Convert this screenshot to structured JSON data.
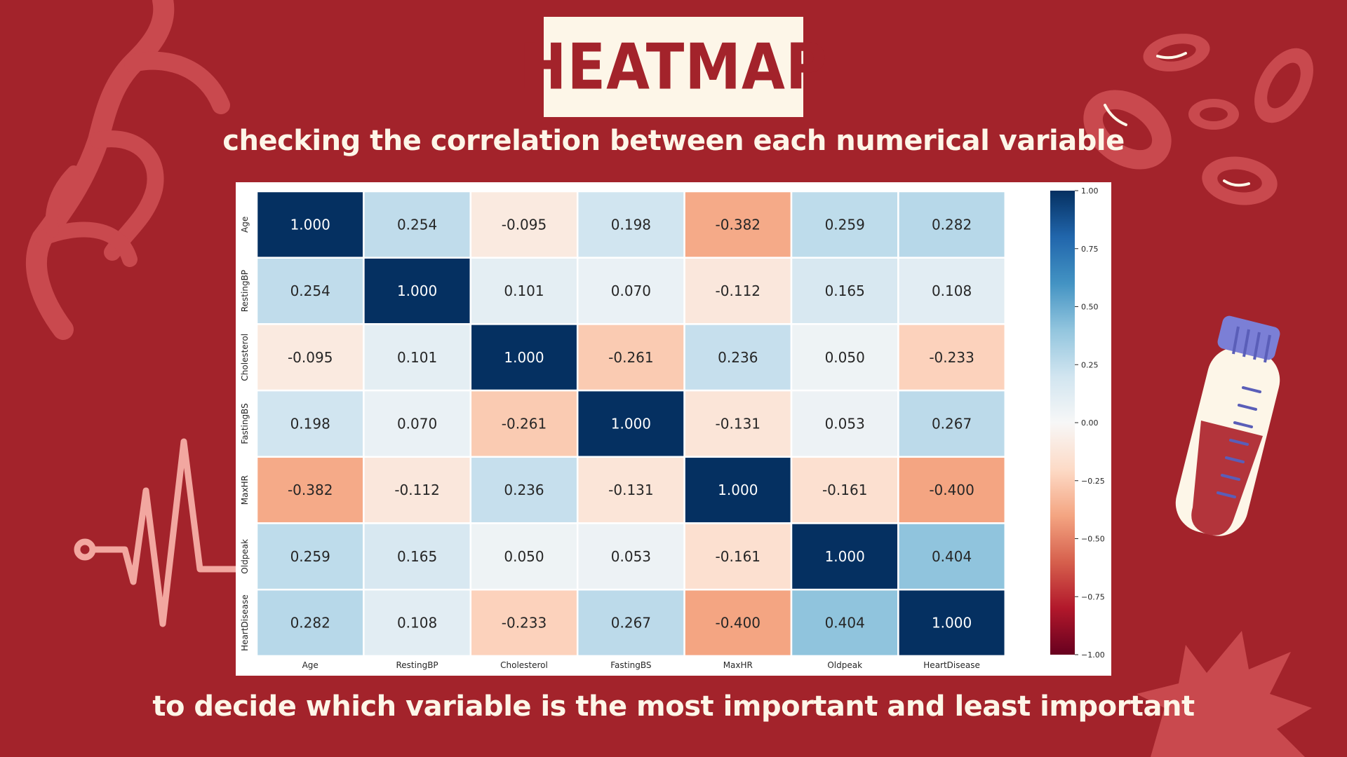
{
  "title": "HEATMAP",
  "subtitle": "checking the correlation between each numerical variable",
  "footer": "to decide which variable is the most important and least important",
  "icons": [
    "vein-icon",
    "blood-cells-icon",
    "heartbeat-line-icon",
    "test-tube-icon",
    "leaf-icon"
  ],
  "colors": {
    "background": "#a3232b",
    "title_box": "#fdf6e8",
    "decor": "#c9494e",
    "pulse": "#f2a7a0"
  },
  "chart_data": {
    "type": "heatmap",
    "x_labels": [
      "Age",
      "RestingBP",
      "Cholesterol",
      "FastingBS",
      "MaxHR",
      "Oldpeak",
      "HeartDisease"
    ],
    "y_labels": [
      "Age",
      "RestingBP",
      "Cholesterol",
      "FastingBS",
      "MaxHR",
      "Oldpeak",
      "HeartDisease"
    ],
    "values": [
      [
        1.0,
        0.254,
        -0.095,
        0.198,
        -0.382,
        0.259,
        0.282
      ],
      [
        0.254,
        1.0,
        0.101,
        0.07,
        -0.112,
        0.165,
        0.108
      ],
      [
        -0.095,
        0.101,
        1.0,
        -0.261,
        0.236,
        0.05,
        -0.233
      ],
      [
        0.198,
        0.07,
        -0.261,
        1.0,
        -0.131,
        0.053,
        0.267
      ],
      [
        -0.382,
        -0.112,
        0.236,
        -0.131,
        1.0,
        -0.161,
        -0.4
      ],
      [
        0.259,
        0.165,
        0.05,
        0.053,
        -0.161,
        1.0,
        0.404
      ],
      [
        0.282,
        0.108,
        -0.233,
        0.267,
        -0.4,
        0.404,
        1.0
      ]
    ],
    "colormap": "RdBu",
    "vmin": -1.0,
    "vmax": 1.0,
    "colorbar_ticks": [
      "1.00",
      "0.75",
      "0.50",
      "0.25",
      "0.00",
      "−0.25",
      "−0.50",
      "−0.75",
      "−1.00"
    ],
    "colorbar_tick_values": [
      1.0,
      0.75,
      0.5,
      0.25,
      0.0,
      -0.25,
      -0.5,
      -0.75,
      -1.0
    ],
    "grid_lines": true
  }
}
